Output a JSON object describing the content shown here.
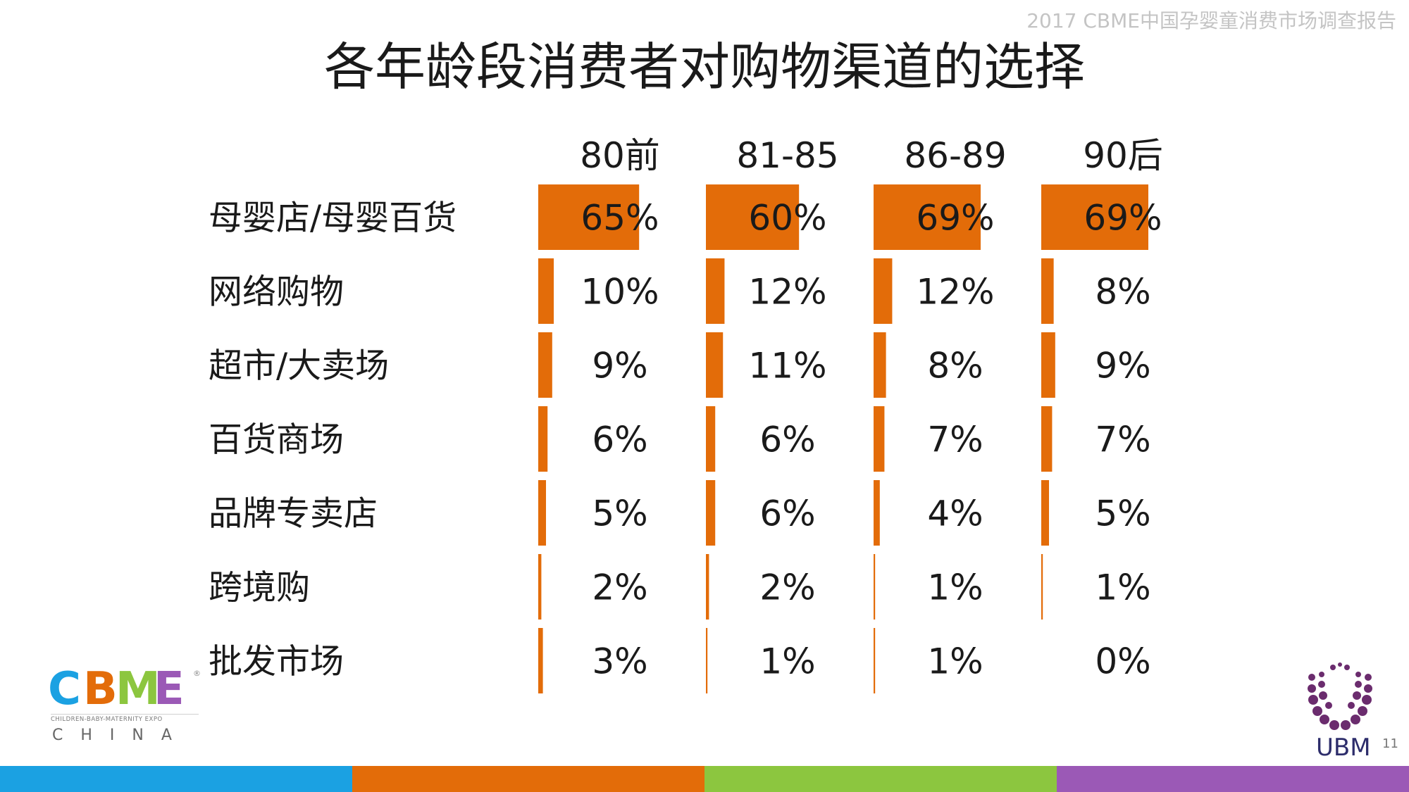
{
  "header": {
    "report_title": "2017 CBME中国孕婴童消费市场调查报告"
  },
  "slide": {
    "title": "各年龄段消费者对购物渠道的选择",
    "page_number": "11"
  },
  "chart_data": {
    "type": "table",
    "title": "各年龄段消费者对购物渠道的选择",
    "columns": [
      "80前",
      "81-85",
      "86-89",
      "90后"
    ],
    "rows": [
      {
        "label": "母婴店/母婴百货",
        "values": [
          65,
          60,
          69,
          69
        ],
        "labels": [
          "65%",
          "60%",
          "69%",
          "69%"
        ]
      },
      {
        "label": "网络购物",
        "values": [
          10,
          12,
          12,
          8
        ],
        "labels": [
          "10%",
          "12%",
          "12%",
          "8%"
        ]
      },
      {
        "label": "超市/大卖场",
        "values": [
          9,
          11,
          8,
          9
        ],
        "labels": [
          "9%",
          "11%",
          "8%",
          "9%"
        ]
      },
      {
        "label": "百货商场",
        "values": [
          6,
          6,
          7,
          7
        ],
        "labels": [
          "6%",
          "6%",
          "7%",
          "7%"
        ]
      },
      {
        "label": "品牌专卖店",
        "values": [
          5,
          6,
          4,
          5
        ],
        "labels": [
          "5%",
          "6%",
          "4%",
          "5%"
        ]
      },
      {
        "label": "跨境购",
        "values": [
          2,
          2,
          1,
          1
        ],
        "labels": [
          "2%",
          "2%",
          "1%",
          "1%"
        ]
      },
      {
        "label": "批发市场",
        "values": [
          3,
          1,
          1,
          0
        ],
        "labels": [
          "3%",
          "1%",
          "1%",
          "0%"
        ]
      }
    ],
    "bar_color": "#E36C09",
    "value_max": 69
  },
  "logos": {
    "cbme": {
      "letters": [
        "C",
        "B",
        "M",
        "E"
      ],
      "letter_colors": [
        "#1BA1E2",
        "#E36C09",
        "#8CC63F",
        "#9B59B6"
      ],
      "tagline": "CHILDREN-BABY-MATERNITY EXPO",
      "country": "CHINA"
    },
    "ubm": {
      "name": "UBM",
      "color": "#2d2d6b",
      "dot_color": "#6b2c6e"
    }
  },
  "footer": {
    "band_colors": [
      "#1BA1E2",
      "#E36C09",
      "#8CC63F",
      "#9B59B6"
    ]
  }
}
